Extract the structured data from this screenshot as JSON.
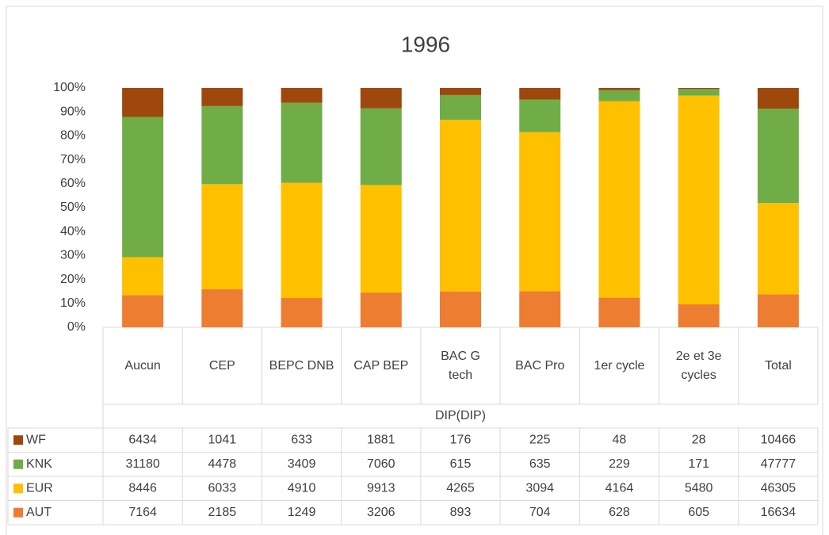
{
  "chart_data": {
    "type": "bar",
    "stacking": "percent",
    "title": "1996",
    "x_label": "DIP(DIP)",
    "categories": [
      "Aucun",
      "CEP",
      "BEPC DNB",
      "CAP BEP",
      "BAC G tech",
      "BAC Pro",
      "1er cycle",
      "2e et 3e cycles",
      "Total"
    ],
    "series": [
      {
        "name": "WF",
        "color": "#9e480e",
        "values": [
          6434,
          1041,
          633,
          1881,
          176,
          225,
          48,
          28,
          10466
        ]
      },
      {
        "name": "KNK",
        "color": "#70ad47",
        "values": [
          31180,
          4478,
          3409,
          7060,
          615,
          635,
          229,
          171,
          47777
        ]
      },
      {
        "name": "EUR",
        "color": "#ffc000",
        "values": [
          8446,
          6033,
          4910,
          9913,
          4265,
          3094,
          4164,
          5480,
          46305
        ]
      },
      {
        "name": "AUT",
        "color": "#ed7d31",
        "values": [
          7164,
          2185,
          1249,
          3206,
          893,
          704,
          628,
          605,
          16634
        ]
      }
    ],
    "ylim": [
      0,
      100
    ],
    "yticks": [
      {
        "value": 0,
        "label": "0%"
      },
      {
        "value": 10,
        "label": "10%"
      },
      {
        "value": 20,
        "label": "20%"
      },
      {
        "value": 30,
        "label": "30%"
      },
      {
        "value": 40,
        "label": "40%"
      },
      {
        "value": 50,
        "label": "50%"
      },
      {
        "value": 60,
        "label": "60%"
      },
      {
        "value": 70,
        "label": "70%"
      },
      {
        "value": 80,
        "label": "80%"
      },
      {
        "value": 90,
        "label": "90%"
      },
      {
        "value": 100,
        "label": "100%"
      }
    ],
    "grid": false
  }
}
